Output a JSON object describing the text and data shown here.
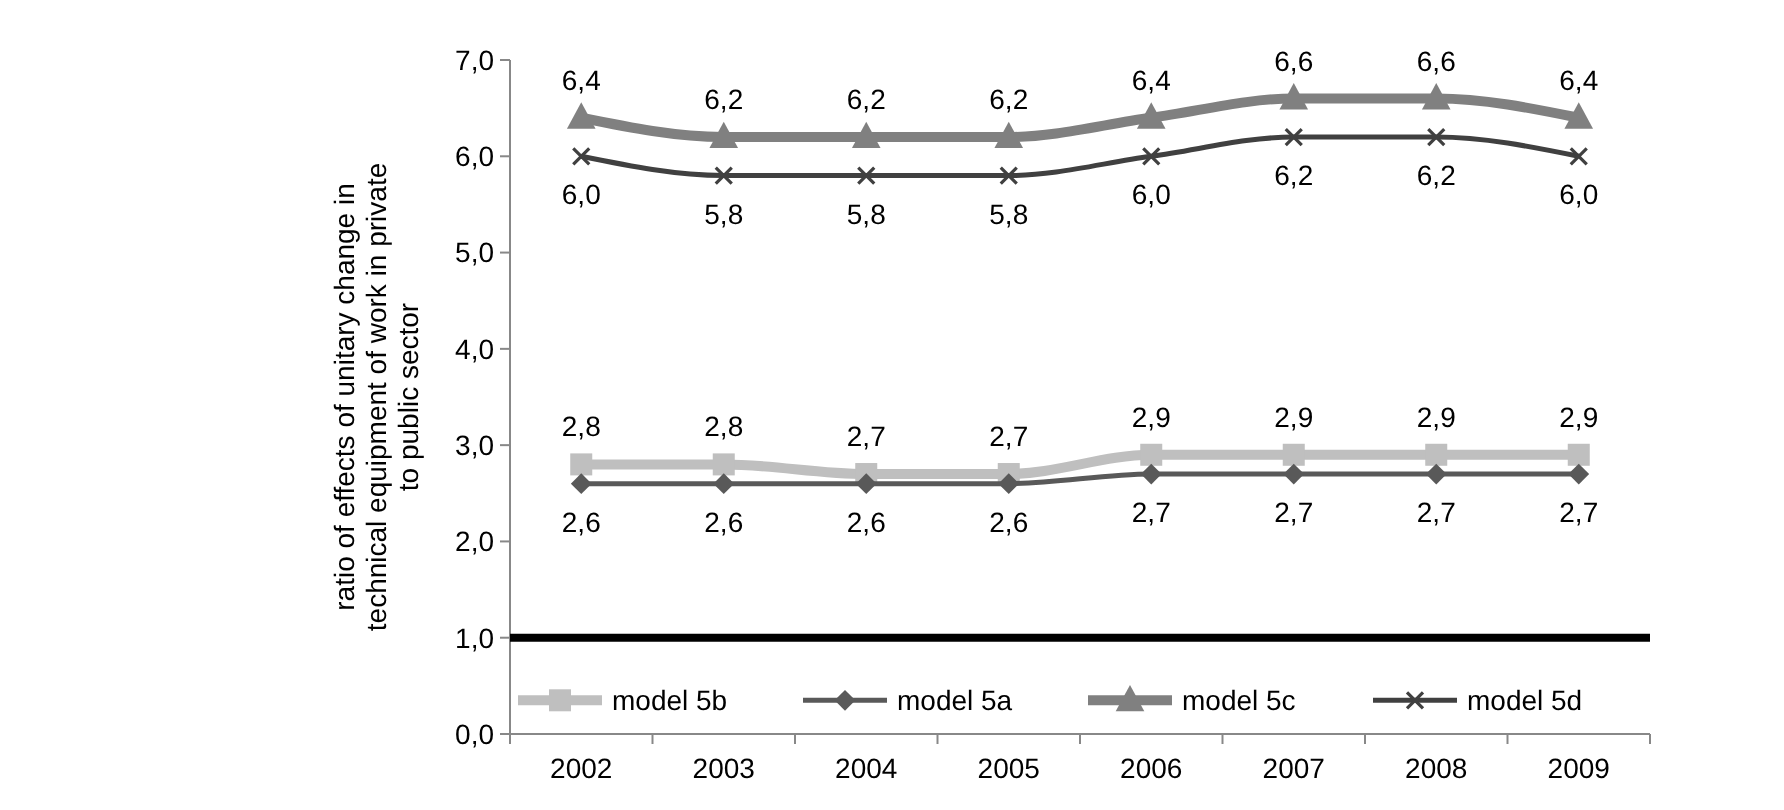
{
  "chart_data": {
    "type": "line",
    "ylabel": "ratio of effects of unitary change in technical equipment of work in private to public sector",
    "categories": [
      "2002",
      "2003",
      "2004",
      "2005",
      "2006",
      "2007",
      "2008",
      "2009"
    ],
    "ylim": [
      0,
      7
    ],
    "yticks": [
      {
        "value": 0,
        "label": "0,0"
      },
      {
        "value": 1,
        "label": "1,0"
      },
      {
        "value": 2,
        "label": "2,0"
      },
      {
        "value": 3,
        "label": "3,0"
      },
      {
        "value": 4,
        "label": "4,0"
      },
      {
        "value": 5,
        "label": "5,0"
      },
      {
        "value": 6,
        "label": "6,0"
      },
      {
        "value": 7,
        "label": "7,0"
      }
    ],
    "grid": false,
    "legend": "bottom",
    "ref_lines": [
      {
        "axis": "y",
        "value": 1,
        "color": "#000000"
      }
    ],
    "series": [
      {
        "name": "model 5b",
        "color": "#bfbfbf",
        "marker": "square",
        "values": [
          2.8,
          2.8,
          2.7,
          2.7,
          2.9,
          2.9,
          2.9,
          2.9
        ],
        "value_labels": [
          "2,8",
          "2,8",
          "2,7",
          "2,7",
          "2,9",
          "2,9",
          "2,9",
          "2,9"
        ]
      },
      {
        "name": "model 5a",
        "color": "#595959",
        "marker": "diamond",
        "values": [
          2.6,
          2.6,
          2.6,
          2.6,
          2.7,
          2.7,
          2.7,
          2.7
        ],
        "value_labels": [
          "2,6",
          "2,6",
          "2,6",
          "2,6",
          "2,7",
          "2,7",
          "2,7",
          "2,7"
        ]
      },
      {
        "name": "model 5c",
        "color": "#808080",
        "marker": "triangle",
        "values": [
          6.4,
          6.2,
          6.2,
          6.2,
          6.4,
          6.6,
          6.6,
          6.4
        ],
        "value_labels": [
          "6,4",
          "6,2",
          "6,2",
          "6,2",
          "6,4",
          "6,6",
          "6,6",
          "6,4"
        ]
      },
      {
        "name": "model 5d",
        "color": "#404040",
        "marker": "cross",
        "values": [
          6.0,
          5.8,
          5.8,
          5.8,
          6.0,
          6.2,
          6.2,
          6.0
        ],
        "value_labels": [
          "6,0",
          "5,8",
          "5,8",
          "5,8",
          "6,0",
          "6,2",
          "6,2",
          "6,0"
        ]
      }
    ]
  }
}
